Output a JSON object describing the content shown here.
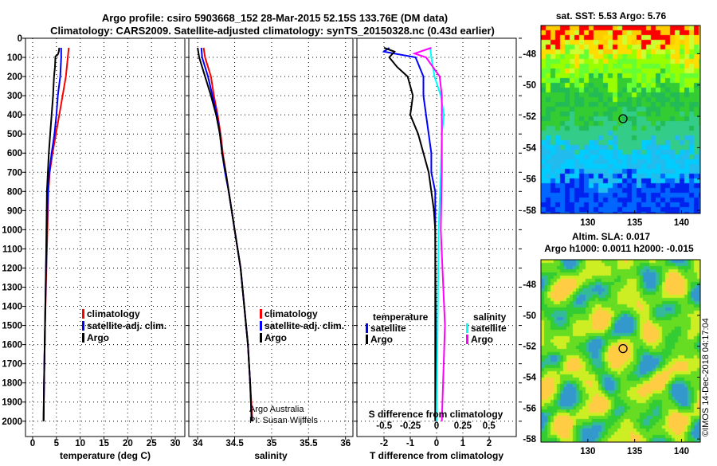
{
  "header": {
    "line1": "Argo profile: csiro 5903668_152 28-Mar-2015 52.15S 133.76E (DM data)",
    "line2": "Climatology: CARS2009. Satellite-adjusted climatology: synTS_20150328.nc (0.43d earlier)"
  },
  "colors": {
    "argo": "#000000",
    "climatology": "#ff0000",
    "satellite": "#0000ff",
    "salinity_satellite": "#00ffff",
    "salinity_argo": "#ff00ff"
  },
  "credits": {
    "line1": "Argo Australia",
    "line2": "PI: Susan Wijffels"
  },
  "watermark": "©IMOS 14-Dec-2018 04:17:04",
  "chart_data": [
    {
      "type": "line",
      "id": "temperature",
      "xlabel": "temperature (deg C)",
      "ylabel": "depth",
      "xlim": [
        -1.5,
        32
      ],
      "ylim": [
        2080,
        0
      ],
      "xticks": [
        0,
        5,
        10,
        15,
        20,
        25,
        30
      ],
      "yticks": [
        0,
        100,
        200,
        300,
        400,
        500,
        600,
        700,
        800,
        900,
        1000,
        1100,
        1200,
        1300,
        1400,
        1500,
        1600,
        1700,
        1800,
        1900,
        2000
      ],
      "grid": true,
      "legend": [
        "climatology",
        "satellite-adj. clim.",
        "Argo"
      ],
      "series": [
        {
          "name": "climatology",
          "color": "#ff0000",
          "points": [
            [
              50,
              7.6
            ],
            [
              100,
              7.4
            ],
            [
              200,
              7.0
            ],
            [
              300,
              6.3
            ],
            [
              400,
              5.6
            ],
            [
              500,
              4.9
            ],
            [
              600,
              4.2
            ],
            [
              700,
              3.6
            ],
            [
              800,
              3.3
            ],
            [
              1000,
              3.1
            ],
            [
              1200,
              2.9
            ],
            [
              1500,
              2.6
            ],
            [
              1800,
              2.4
            ],
            [
              2000,
              2.3
            ]
          ]
        },
        {
          "name": "satellite-adj. clim.",
          "color": "#0000ff",
          "points": [
            [
              50,
              6.0
            ],
            [
              100,
              6.0
            ],
            [
              200,
              5.8
            ],
            [
              300,
              5.3
            ],
            [
              400,
              5.0
            ],
            [
              500,
              4.6
            ],
            [
              600,
              4.0
            ],
            [
              700,
              3.5
            ],
            [
              800,
              3.2
            ],
            [
              1000,
              3.0
            ],
            [
              1200,
              2.8
            ],
            [
              1500,
              2.6
            ],
            [
              1800,
              2.4
            ],
            [
              2000,
              2.3
            ]
          ]
        },
        {
          "name": "Argo",
          "color": "#000000",
          "points": [
            [
              50,
              5.6
            ],
            [
              70,
              5.5
            ],
            [
              85,
              5.3
            ],
            [
              95,
              4.8
            ],
            [
              150,
              4.7
            ],
            [
              200,
              4.5
            ],
            [
              300,
              4.3
            ],
            [
              400,
              4.0
            ],
            [
              500,
              3.7
            ],
            [
              600,
              3.4
            ],
            [
              700,
              3.2
            ],
            [
              800,
              3.0
            ],
            [
              1000,
              2.9
            ],
            [
              1200,
              2.8
            ],
            [
              1500,
              2.6
            ],
            [
              1800,
              2.4
            ],
            [
              2000,
              2.3
            ]
          ]
        }
      ]
    },
    {
      "type": "line",
      "id": "salinity",
      "xlabel": "salinity",
      "xlim": [
        33.88,
        36.1
      ],
      "ylim": [
        2080,
        0
      ],
      "xticks": [
        34,
        34.5,
        35,
        35.5,
        36
      ],
      "grid": true,
      "legend": [
        "climatology",
        "satellite-adj. clim.",
        "Argo"
      ],
      "series": [
        {
          "name": "climatology",
          "color": "#ff0000",
          "points": [
            [
              50,
              34.08
            ],
            [
              100,
              34.1
            ],
            [
              200,
              34.18
            ],
            [
              300,
              34.22
            ],
            [
              400,
              34.27
            ],
            [
              500,
              34.31
            ],
            [
              600,
              34.34
            ],
            [
              700,
              34.38
            ],
            [
              800,
              34.42
            ],
            [
              1000,
              34.5
            ],
            [
              1200,
              34.58
            ],
            [
              1400,
              34.63
            ],
            [
              1600,
              34.68
            ],
            [
              1800,
              34.71
            ],
            [
              2000,
              34.74
            ]
          ]
        },
        {
          "name": "satellite-adj. clim.",
          "color": "#0000ff",
          "points": [
            [
              50,
              34.05
            ],
            [
              100,
              34.06
            ],
            [
              200,
              34.14
            ],
            [
              300,
              34.2
            ],
            [
              400,
              34.26
            ],
            [
              500,
              34.3
            ],
            [
              600,
              34.33
            ],
            [
              700,
              34.37
            ],
            [
              800,
              34.42
            ],
            [
              1000,
              34.5
            ],
            [
              1200,
              34.58
            ],
            [
              1400,
              34.63
            ],
            [
              1600,
              34.68
            ],
            [
              1800,
              34.71
            ],
            [
              2000,
              34.73
            ]
          ]
        },
        {
          "name": "Argo",
          "color": "#000000",
          "points": [
            [
              50,
              34.0
            ],
            [
              100,
              34.02
            ],
            [
              150,
              34.06
            ],
            [
              200,
              34.1
            ],
            [
              300,
              34.18
            ],
            [
              400,
              34.25
            ],
            [
              500,
              34.3
            ],
            [
              600,
              34.33
            ],
            [
              700,
              34.38
            ],
            [
              800,
              34.42
            ],
            [
              1000,
              34.5
            ],
            [
              1200,
              34.58
            ],
            [
              1400,
              34.63
            ],
            [
              1600,
              34.68
            ],
            [
              1800,
              34.71
            ],
            [
              2000,
              34.73
            ]
          ]
        }
      ]
    },
    {
      "type": "line",
      "id": "difference",
      "xlabel": "T difference from climatology",
      "x2label": "S difference from climatology",
      "xlim": [
        -3.03,
        3.03
      ],
      "x2lim": [
        -0.76,
        0.76
      ],
      "ylim": [
        2080,
        0
      ],
      "xticks": [
        -2,
        -1,
        0,
        1,
        2
      ],
      "x2ticks": [
        -0.5,
        -0.25,
        0,
        0.25,
        0.5
      ],
      "grid": true,
      "legend": {
        "temperature": {
          "title": "temperature",
          "items": [
            "satellite",
            "Argo"
          ]
        },
        "salinity": {
          "title": "salinity",
          "items": [
            "satellite",
            "Argo"
          ]
        }
      },
      "series": [
        {
          "name": "temperature satellite",
          "axis": "T",
          "color": "#0000ff",
          "points": [
            [
              50,
              -1.8
            ],
            [
              70,
              -2.0
            ],
            [
              100,
              -0.8
            ],
            [
              200,
              -0.5
            ],
            [
              300,
              -0.5
            ],
            [
              400,
              -0.4
            ],
            [
              500,
              -0.3
            ],
            [
              600,
              -0.2
            ],
            [
              700,
              -0.2
            ],
            [
              800,
              -0.05
            ],
            [
              1000,
              -0.05
            ],
            [
              2000,
              0
            ]
          ]
        },
        {
          "name": "temperature Argo",
          "axis": "T",
          "color": "#000000",
          "points": [
            [
              50,
              -2.0
            ],
            [
              70,
              -1.6
            ],
            [
              100,
              -1.8
            ],
            [
              150,
              -1.5
            ],
            [
              200,
              -1.1
            ],
            [
              300,
              -0.9
            ],
            [
              400,
              -1.0
            ],
            [
              500,
              -0.7
            ],
            [
              600,
              -0.5
            ],
            [
              700,
              -0.3
            ],
            [
              800,
              -0.2
            ],
            [
              900,
              -0.1
            ],
            [
              1000,
              -0.05
            ],
            [
              2000,
              -0.05
            ]
          ]
        },
        {
          "name": "salinity satellite",
          "axis": "S",
          "color": "#00ffff",
          "points": [
            [
              50,
              -0.06
            ],
            [
              100,
              -0.05
            ],
            [
              200,
              -0.02
            ],
            [
              300,
              0.04
            ],
            [
              400,
              0.07
            ],
            [
              500,
              0.05
            ],
            [
              700,
              0.04
            ],
            [
              1000,
              0.02
            ],
            [
              1500,
              0.01
            ],
            [
              2000,
              0.0
            ]
          ]
        },
        {
          "name": "salinity Argo",
          "axis": "S",
          "color": "#ff00ff",
          "points": [
            [
              50,
              -0.05
            ],
            [
              80,
              -0.21
            ],
            [
              100,
              -0.1
            ],
            [
              200,
              0.03
            ],
            [
              300,
              0.05
            ],
            [
              500,
              0.05
            ],
            [
              700,
              0.05
            ],
            [
              1000,
              0.04
            ],
            [
              1500,
              0.08
            ],
            [
              2000,
              0.05
            ]
          ]
        }
      ]
    },
    {
      "type": "heatmap",
      "id": "sst_map",
      "title": "sat. SST: 5.53 Argo: 5.76",
      "xlim": [
        125,
        142
      ],
      "ylim": [
        -58.2,
        -46.2
      ],
      "xticks": [
        130,
        135,
        140
      ],
      "yticks": [
        -48,
        -50,
        -52,
        -54,
        -56,
        -58
      ],
      "marker": {
        "lon": 133.76,
        "lat": -52.15
      }
    },
    {
      "type": "heatmap",
      "id": "sla_map",
      "title": "Altim. SLA: 0.017",
      "subtitle": "Argo h1000: 0.0011 h2000: -0.015",
      "xlim": [
        125,
        142
      ],
      "ylim": [
        -58.2,
        -46.4
      ],
      "xticks": [
        130,
        135,
        140
      ],
      "yticks": [
        -48,
        -50,
        -52,
        -54,
        -56,
        -58
      ],
      "marker": {
        "lon": 133.76,
        "lat": -52.15
      }
    }
  ]
}
